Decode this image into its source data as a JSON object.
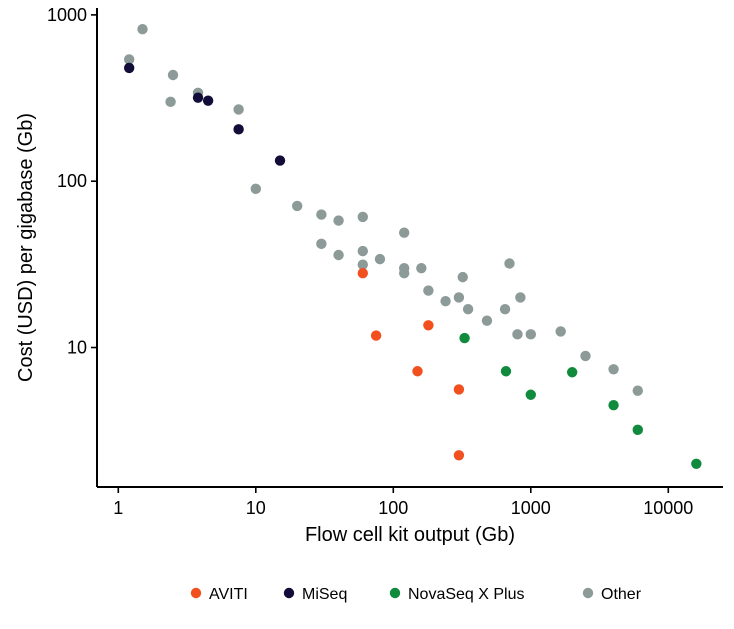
{
  "chart_data": {
    "type": "scatter",
    "title": "",
    "xlabel": "Flow cell kit output (Gb)",
    "ylabel": "Cost (USD) per gigabase (Gb)",
    "xscale": "log",
    "yscale": "log",
    "xlim": [
      0.7,
      25000
    ],
    "ylim": [
      1.45,
      1100
    ],
    "xticks": [
      1,
      10,
      100,
      1000,
      10000
    ],
    "xtick_labels": [
      "1",
      "10",
      "100",
      "1000",
      "10000"
    ],
    "yticks": [
      10,
      100,
      1000
    ],
    "ytick_labels": [
      "10",
      "100",
      "1000"
    ],
    "legend_position": "bottom",
    "series": [
      {
        "name": "Other",
        "color": "#8c9a98",
        "points": [
          {
            "x": 1.2,
            "y": 540
          },
          {
            "x": 1.5,
            "y": 820
          },
          {
            "x": 2.4,
            "y": 300
          },
          {
            "x": 2.5,
            "y": 435
          },
          {
            "x": 3.8,
            "y": 340
          },
          {
            "x": 7.5,
            "y": 270
          },
          {
            "x": 10,
            "y": 90
          },
          {
            "x": 20,
            "y": 71
          },
          {
            "x": 30,
            "y": 63
          },
          {
            "x": 30,
            "y": 42
          },
          {
            "x": 40,
            "y": 58
          },
          {
            "x": 40,
            "y": 36
          },
          {
            "x": 60,
            "y": 61
          },
          {
            "x": 60,
            "y": 38
          },
          {
            "x": 60,
            "y": 31.5
          },
          {
            "x": 80,
            "y": 34
          },
          {
            "x": 120,
            "y": 49
          },
          {
            "x": 120,
            "y": 30
          },
          {
            "x": 120,
            "y": 28
          },
          {
            "x": 160,
            "y": 30
          },
          {
            "x": 180,
            "y": 22
          },
          {
            "x": 240,
            "y": 19
          },
          {
            "x": 300,
            "y": 20
          },
          {
            "x": 320,
            "y": 26.5
          },
          {
            "x": 350,
            "y": 17
          },
          {
            "x": 480,
            "y": 14.5
          },
          {
            "x": 650,
            "y": 17
          },
          {
            "x": 700,
            "y": 32
          },
          {
            "x": 800,
            "y": 12
          },
          {
            "x": 840,
            "y": 20
          },
          {
            "x": 1000,
            "y": 12
          },
          {
            "x": 1650,
            "y": 12.5
          },
          {
            "x": 2500,
            "y": 8.9
          },
          {
            "x": 4000,
            "y": 7.4
          },
          {
            "x": 6000,
            "y": 5.5
          }
        ]
      },
      {
        "name": "MiSeq",
        "color": "#120d38",
        "points": [
          {
            "x": 1.2,
            "y": 480
          },
          {
            "x": 3.8,
            "y": 318
          },
          {
            "x": 4.5,
            "y": 305
          },
          {
            "x": 7.5,
            "y": 205
          },
          {
            "x": 15,
            "y": 133
          }
        ]
      },
      {
        "name": "AVITI",
        "color": "#f2501e",
        "points": [
          {
            "x": 60,
            "y": 28
          },
          {
            "x": 75,
            "y": 11.8
          },
          {
            "x": 150,
            "y": 7.2
          },
          {
            "x": 180,
            "y": 13.6
          },
          {
            "x": 300,
            "y": 5.6
          },
          {
            "x": 300,
            "y": 2.25
          }
        ]
      },
      {
        "name": "NovaSeq X Plus",
        "color": "#108a3c",
        "points": [
          {
            "x": 330,
            "y": 11.4
          },
          {
            "x": 660,
            "y": 7.2
          },
          {
            "x": 1000,
            "y": 5.2
          },
          {
            "x": 2000,
            "y": 7.1
          },
          {
            "x": 4000,
            "y": 4.5
          },
          {
            "x": 6000,
            "y": 3.2
          },
          {
            "x": 16000,
            "y": 2.0
          }
        ]
      }
    ],
    "legend": [
      {
        "name": "AVITI",
        "color": "#f2501e"
      },
      {
        "name": "MiSeq",
        "color": "#120d38"
      },
      {
        "name": "NovaSeq X Plus",
        "color": "#108a3c"
      },
      {
        "name": "Other",
        "color": "#8c9a98"
      }
    ]
  }
}
